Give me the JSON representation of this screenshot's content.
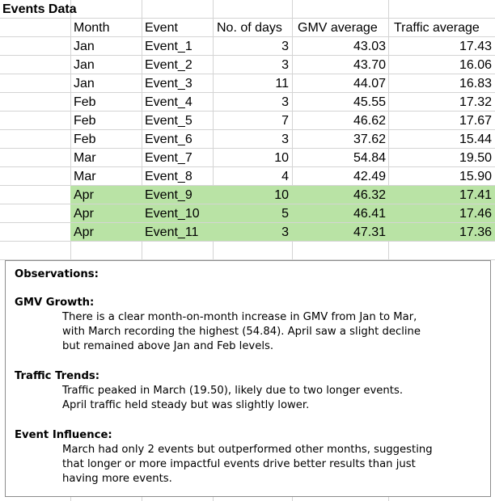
{
  "sheet": {
    "title": "Events Data",
    "headers": [
      "Month",
      "Event",
      "No. of days",
      "GMV average",
      "Traffic average"
    ],
    "rows": [
      {
        "month": "Jan",
        "event": "Event_1",
        "days": "3",
        "gmv": "43.03",
        "traffic": "17.43",
        "highlight": false
      },
      {
        "month": "Jan",
        "event": "Event_2",
        "days": "3",
        "gmv": "43.70",
        "traffic": "16.06",
        "highlight": false
      },
      {
        "month": "Jan",
        "event": "Event_3",
        "days": "11",
        "gmv": "44.07",
        "traffic": "16.83",
        "highlight": false
      },
      {
        "month": "Feb",
        "event": "Event_4",
        "days": "3",
        "gmv": "45.55",
        "traffic": "17.32",
        "highlight": false
      },
      {
        "month": "Feb",
        "event": "Event_5",
        "days": "7",
        "gmv": "46.62",
        "traffic": "17.67",
        "highlight": false
      },
      {
        "month": "Feb",
        "event": "Event_6",
        "days": "3",
        "gmv": "37.62",
        "traffic": "15.44",
        "highlight": false
      },
      {
        "month": "Mar",
        "event": "Event_7",
        "days": "10",
        "gmv": "54.84",
        "traffic": "19.50",
        "highlight": false
      },
      {
        "month": "Mar",
        "event": "Event_8",
        "days": "4",
        "gmv": "42.49",
        "traffic": "15.90",
        "highlight": false
      },
      {
        "month": "Apr",
        "event": "Event_9",
        "days": "10",
        "gmv": "46.32",
        "traffic": "17.41",
        "highlight": true
      },
      {
        "month": "Apr",
        "event": "Event_10",
        "days": "5",
        "gmv": "46.41",
        "traffic": "17.46",
        "highlight": true
      },
      {
        "month": "Apr",
        "event": "Event_11",
        "days": "3",
        "gmv": "47.31",
        "traffic": "17.36",
        "highlight": true
      }
    ],
    "highlight_color": "#b9e3a5",
    "grid_color": "#d4d4d4"
  },
  "observations": {
    "heading": "Observations:",
    "sections": [
      {
        "title": "GMV Growth:",
        "lines": [
          "There is a clear month-on-month increase in GMV from Jan to Mar,",
          "with March recording the highest (54.84). April saw a slight decline",
          "but remained above Jan and Feb levels."
        ]
      },
      {
        "title": "Traffic Trends:",
        "lines": [
          "Traffic peaked in March (19.50), likely due to two longer events.",
          "April traffic held steady but was slightly lower."
        ]
      },
      {
        "title": "Event Influence:",
        "lines": [
          "March had only 2 events but outperformed other months, suggesting",
          "that longer or more impactful events drive better results than just",
          "having more events."
        ]
      }
    ]
  }
}
